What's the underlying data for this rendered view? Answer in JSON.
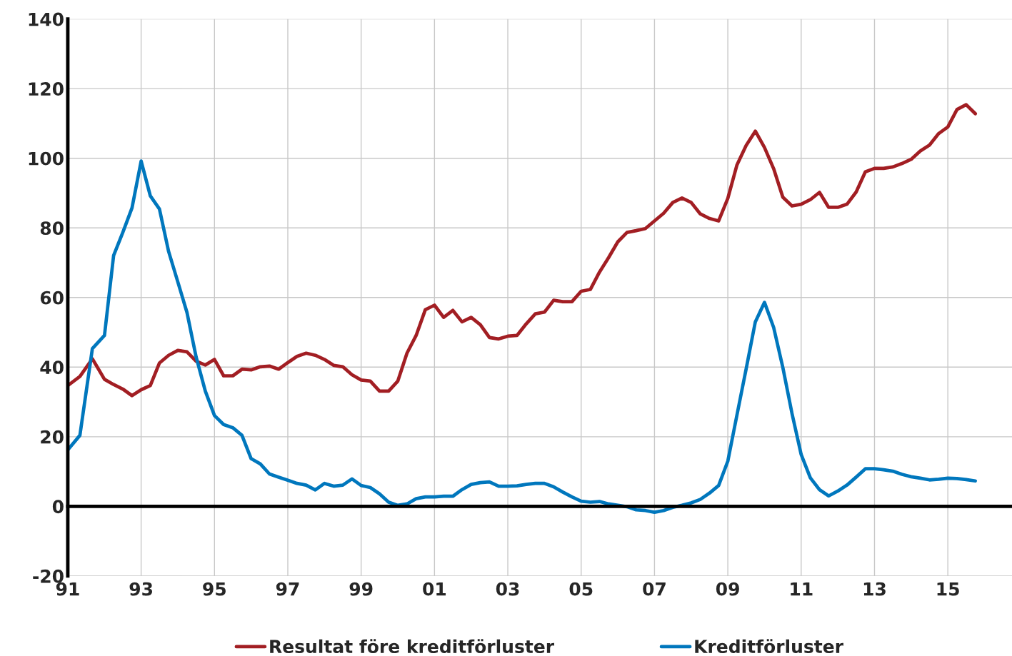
{
  "chart_data": {
    "type": "line",
    "x": [
      1991.0,
      1991.33,
      1991.67,
      1992.0,
      1992.25,
      1992.5,
      1992.75,
      1993.0,
      1993.25,
      1993.5,
      1993.75,
      1994.0,
      1994.25,
      1994.5,
      1994.75,
      1995.0,
      1995.25,
      1995.5,
      1995.75,
      1996.0,
      1996.25,
      1996.5,
      1996.75,
      1997.0,
      1997.25,
      1997.5,
      1997.75,
      1998.0,
      1998.25,
      1998.5,
      1998.75,
      1999.0,
      1999.25,
      1999.5,
      1999.75,
      2000.0,
      2000.25,
      2000.5,
      2000.75,
      2001.0,
      2001.25,
      2001.5,
      2001.75,
      2002.0,
      2002.25,
      2002.5,
      2002.75,
      2003.0,
      2003.25,
      2003.5,
      2003.75,
      2004.0,
      2004.25,
      2004.5,
      2004.75,
      2005.0,
      2005.25,
      2005.5,
      2005.75,
      2006.0,
      2006.25,
      2006.5,
      2006.75,
      2007.0,
      2007.25,
      2007.5,
      2007.75,
      2008.0,
      2008.25,
      2008.5,
      2008.75,
      2009.0,
      2009.25,
      2009.5,
      2009.75,
      2010.0,
      2010.25,
      2010.5,
      2010.75,
      2011.0,
      2011.25,
      2011.5,
      2011.75,
      2012.0,
      2012.25,
      2012.5,
      2012.75,
      2013.0,
      2013.25,
      2013.5,
      2013.75,
      2014.0,
      2014.25,
      2014.5,
      2014.75,
      2015.0,
      2015.25,
      2015.5,
      2015.75
    ],
    "series": [
      {
        "name": "Resultat före kreditförluster",
        "color": "#a21e23",
        "values": [
          34.7,
          37.3,
          42.4,
          36.5,
          35.0,
          33.7,
          31.8,
          33.5,
          34.7,
          41.2,
          43.4,
          44.8,
          44.4,
          41.7,
          40.6,
          42.2,
          37.5,
          37.5,
          39.4,
          39.2,
          40.1,
          40.3,
          39.4,
          41.3,
          43.1,
          44.0,
          43.4,
          42.2,
          40.5,
          40.1,
          37.8,
          36.3,
          36.0,
          33.1,
          33.1,
          36.0,
          44.0,
          49.1,
          56.5,
          57.8,
          54.3,
          56.3,
          53.0,
          54.3,
          52.2,
          48.5,
          48.1,
          48.9,
          49.1,
          52.4,
          55.3,
          55.8,
          59.2,
          58.8,
          58.8,
          61.8,
          62.3,
          67.3,
          71.5,
          76.0,
          78.7,
          79.2,
          79.8,
          82.0,
          84.2,
          87.3,
          88.6,
          87.3,
          84.0,
          82.7,
          82.0,
          88.5,
          98.1,
          103.7,
          107.8,
          103.1,
          97.0,
          88.8,
          86.3,
          86.8,
          88.1,
          90.2,
          85.9,
          85.9,
          86.8,
          90.3,
          96.1,
          97.1,
          97.1,
          97.5,
          98.5,
          99.7,
          102.1,
          103.8,
          107.1,
          109.0,
          114.0,
          115.4,
          112.8
        ]
      },
      {
        "name": "Kreditförluster",
        "color": "#0077bd",
        "values": [
          16.2,
          20.4,
          45.3,
          49.1,
          72.1,
          78.7,
          85.7,
          99.2,
          89.2,
          85.4,
          73.2,
          64.5,
          55.7,
          42.9,
          33.1,
          26.1,
          23.5,
          22.6,
          20.4,
          13.7,
          12.2,
          9.3,
          8.4,
          7.5,
          6.6,
          6.1,
          4.7,
          6.6,
          5.8,
          6.1,
          7.9,
          6.0,
          5.4,
          3.6,
          1.2,
          0.3,
          0.7,
          2.2,
          2.7,
          2.7,
          2.9,
          2.9,
          4.8,
          6.3,
          6.8,
          7.0,
          5.8,
          5.8,
          5.9,
          6.3,
          6.6,
          6.6,
          5.6,
          4.1,
          2.7,
          1.5,
          1.2,
          1.4,
          0.7,
          0.3,
          -0.1,
          -1.0,
          -1.2,
          -1.7,
          -1.2,
          -0.3,
          0.3,
          1.0,
          2.0,
          3.8,
          6.0,
          13.0,
          26.3,
          39.5,
          53.0,
          58.6,
          51.4,
          39.9,
          26.7,
          14.9,
          8.2,
          4.8,
          3.0,
          4.4,
          6.1,
          8.4,
          10.8,
          10.8,
          10.5,
          10.1,
          9.2,
          8.5,
          8.1,
          7.6,
          7.8,
          8.1,
          8.0,
          7.7,
          7.3
        ]
      }
    ],
    "xlim": [
      1991,
      2016.75
    ],
    "xticks": [
      {
        "value": 1991,
        "label": "91"
      },
      {
        "value": 1993,
        "label": "93"
      },
      {
        "value": 1995,
        "label": "95"
      },
      {
        "value": 1997,
        "label": "97"
      },
      {
        "value": 1999,
        "label": "99"
      },
      {
        "value": 2001,
        "label": "01"
      },
      {
        "value": 2003,
        "label": "03"
      },
      {
        "value": 2005,
        "label": "05"
      },
      {
        "value": 2007,
        "label": "07"
      },
      {
        "value": 2009,
        "label": "09"
      },
      {
        "value": 2011,
        "label": "11"
      },
      {
        "value": 2013,
        "label": "13"
      },
      {
        "value": 2015,
        "label": "15"
      }
    ],
    "ylim": [
      -20,
      140
    ],
    "yticks": [
      -20,
      0,
      20,
      40,
      60,
      80,
      100,
      120,
      140
    ],
    "grid": true,
    "legend": "bottom",
    "marker": "none",
    "line_style": "solid"
  }
}
